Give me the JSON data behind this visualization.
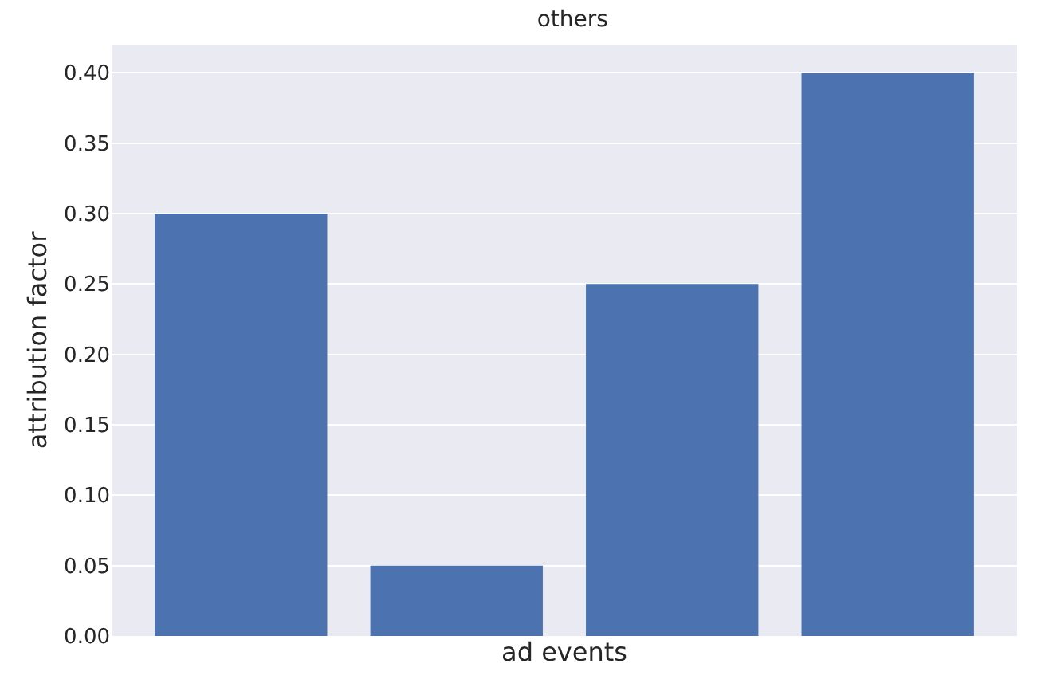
{
  "chart_data": {
    "type": "bar",
    "title": "others",
    "xlabel": "ad events",
    "ylabel": "attribution factor",
    "categories": [
      null,
      null,
      null,
      null
    ],
    "values": [
      0.3,
      0.05,
      0.25,
      0.4
    ],
    "color": "#4c72b0",
    "ylim": [
      0,
      0.42
    ],
    "yticks": [
      {
        "value": 0,
        "label": "0.00"
      },
      {
        "value": 0.05,
        "label": "0.05"
      },
      {
        "value": 0.1,
        "label": "0.10"
      },
      {
        "value": 0.15,
        "label": "0.15"
      },
      {
        "value": 0.2,
        "label": "0.20"
      },
      {
        "value": 0.25,
        "label": "0.25"
      },
      {
        "value": 0.3,
        "label": "0.30"
      },
      {
        "value": 0.35,
        "label": "0.35"
      },
      {
        "value": 0.4,
        "label": "0.40"
      }
    ],
    "grid": "y"
  }
}
